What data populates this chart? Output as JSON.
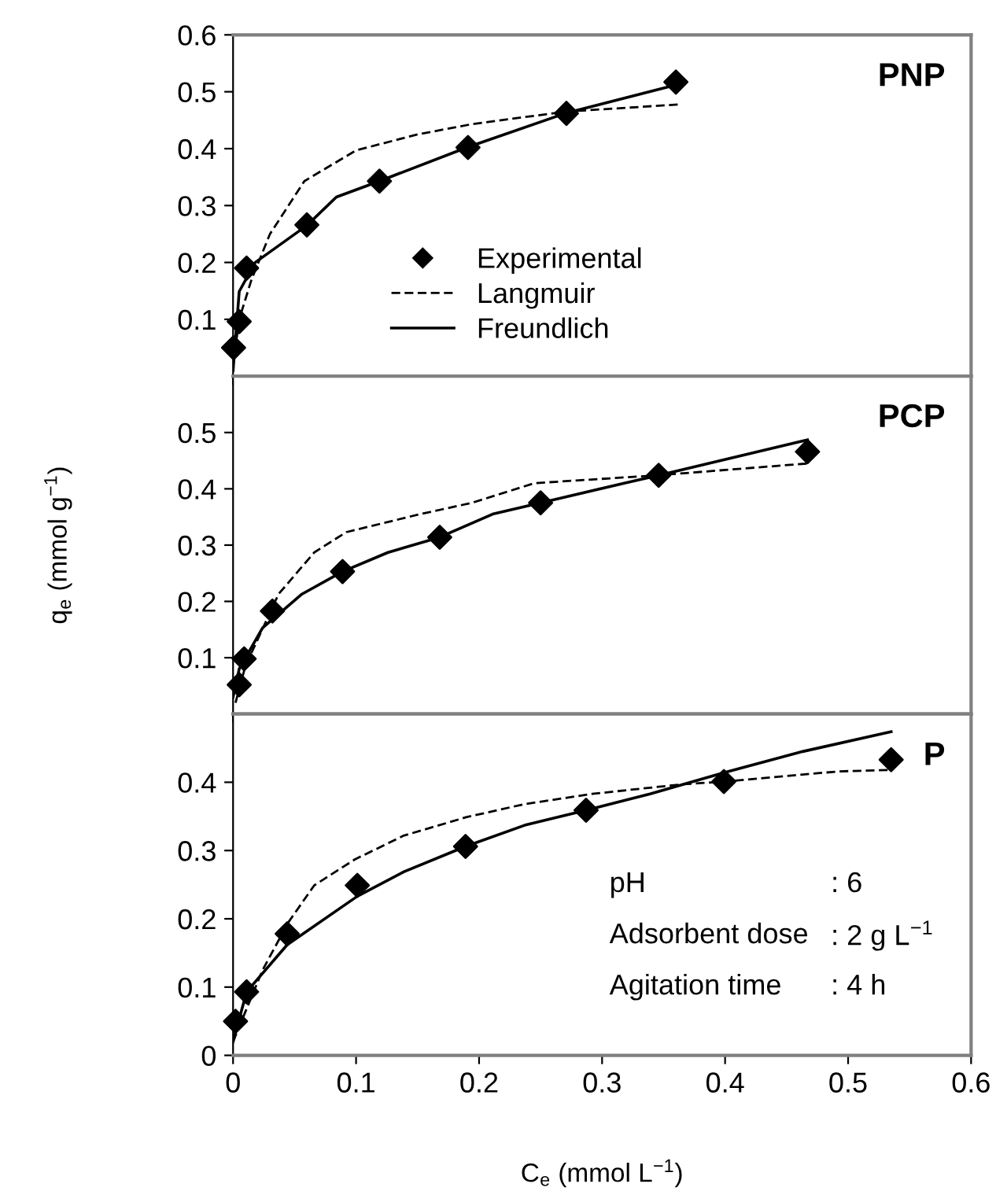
{
  "chart_data": [
    {
      "type": "line",
      "xlim": [
        0,
        0.6
      ],
      "xticks": [
        0,
        0.1,
        0.2,
        0.3,
        0.4,
        0.5,
        0.6
      ],
      "ylim": [
        0,
        0.6
      ],
      "yticks": [
        0.1,
        0.2,
        0.3,
        0.4,
        0.5,
        0.6
      ],
      "tick_labels": "y",
      "grid": false,
      "legend": "lower left",
      "annotations": [
        "PNP"
      ],
      "series": [
        {
          "name": "Experimental",
          "type": "scatter",
          "marker": "diamond",
          "color": "#000000",
          "x": [
            0.0004,
            0.005,
            0.011,
            0.06,
            0.119,
            0.191,
            0.271,
            0.36
          ],
          "values": [
            0.05,
            0.096,
            0.19,
            0.266,
            0.343,
            0.402,
            0.462,
            0.517
          ]
        },
        {
          "name": "Langmuir",
          "line_style": "dashed",
          "color": "#000000",
          "x": [
            0,
            0.005,
            0.015,
            0.03,
            0.058,
            0.1,
            0.15,
            0.194,
            0.27,
            0.365
          ],
          "values": [
            0.02,
            0.1,
            0.17,
            0.25,
            0.343,
            0.397,
            0.425,
            0.443,
            0.465,
            0.478
          ]
        },
        {
          "name": "Freundlich",
          "line_style": "solid",
          "color": "#000000",
          "x": [
            0,
            0.005,
            0.018,
            0.06,
            0.084,
            0.119,
            0.19,
            0.27,
            0.36
          ],
          "values": [
            0.01,
            0.149,
            0.2,
            0.265,
            0.315,
            0.343,
            0.402,
            0.462,
            0.512
          ]
        }
      ]
    },
    {
      "type": "line",
      "xlim": [
        0,
        0.6
      ],
      "xticks": [
        0,
        0.1,
        0.2,
        0.3,
        0.4,
        0.5,
        0.6
      ],
      "ylim": [
        0,
        0.6
      ],
      "yticks": [
        0.1,
        0.2,
        0.3,
        0.4,
        0.5
      ],
      "tick_labels": "y",
      "grid": false,
      "ylabel": "q$_{e}$ (mmol g$^{−1}$)",
      "annotations": [
        "PCP"
      ],
      "series": [
        {
          "type": "scatter",
          "marker": "diamond",
          "color": "#000000",
          "x": [
            0.005,
            0.009,
            0.032,
            0.089,
            0.168,
            0.25,
            0.346,
            0.467
          ],
          "values": [
            0.052,
            0.098,
            0.183,
            0.253,
            0.314,
            0.375,
            0.424,
            0.466
          ]
        },
        {
          "line_style": "dashed",
          "color": "#000000",
          "x": [
            0.002,
            0.01,
            0.037,
            0.066,
            0.092,
            0.152,
            0.194,
            0.245,
            0.345,
            0.467
          ],
          "values": [
            0.02,
            0.085,
            0.213,
            0.287,
            0.323,
            0.355,
            0.375,
            0.41,
            0.424,
            0.445
          ]
        },
        {
          "line_style": "solid",
          "color": "#000000",
          "x": [
            0,
            0.005,
            0.024,
            0.056,
            0.089,
            0.126,
            0.168,
            0.211,
            0.25,
            0.318,
            0.346,
            0.467
          ],
          "values": [
            0.03,
            0.08,
            0.153,
            0.213,
            0.253,
            0.287,
            0.314,
            0.355,
            0.375,
            0.41,
            0.424,
            0.487
          ]
        }
      ]
    },
    {
      "type": "line",
      "xlim": [
        0,
        0.6
      ],
      "xticks": [
        0,
        0.1,
        0.2,
        0.3,
        0.4,
        0.5,
        0.6
      ],
      "ylim": [
        0,
        0.5
      ],
      "yticks": [
        0,
        0.1,
        0.2,
        0.3,
        0.4
      ],
      "grid": false,
      "xlabel": "C$_{e}$ (mmol L$^{−1}$)",
      "annotations": [
        "P",
        "pH",
        ": 6",
        "Adsorbent dose",
        ": 2 g L$^{−1}$",
        "Agitation time",
        ": 4 h"
      ],
      "series": [
        {
          "type": "scatter",
          "marker": "diamond",
          "color": "#000000",
          "x": [
            0.002,
            0.011,
            0.044,
            0.101,
            0.189,
            0.287,
            0.399,
            0.535
          ],
          "values": [
            0.05,
            0.093,
            0.178,
            0.249,
            0.306,
            0.359,
            0.401,
            0.433
          ]
        },
        {
          "line_style": "dashed",
          "color": "#000000",
          "x": [
            0,
            0.024,
            0.045,
            0.066,
            0.099,
            0.139,
            0.19,
            0.237,
            0.292,
            0.365,
            0.399,
            0.493,
            0.535
          ],
          "values": [
            0.02,
            0.125,
            0.195,
            0.249,
            0.287,
            0.322,
            0.349,
            0.368,
            0.383,
            0.397,
            0.401,
            0.416,
            0.418
          ]
        },
        {
          "line_style": "solid",
          "color": "#000000",
          "x": [
            0,
            0.011,
            0.044,
            0.101,
            0.139,
            0.189,
            0.237,
            0.287,
            0.339,
            0.399,
            0.463,
            0.535
          ],
          "values": [
            0.02,
            0.093,
            0.162,
            0.233,
            0.269,
            0.306,
            0.337,
            0.359,
            0.383,
            0.414,
            0.445,
            0.474
          ]
        }
      ]
    }
  ]
}
